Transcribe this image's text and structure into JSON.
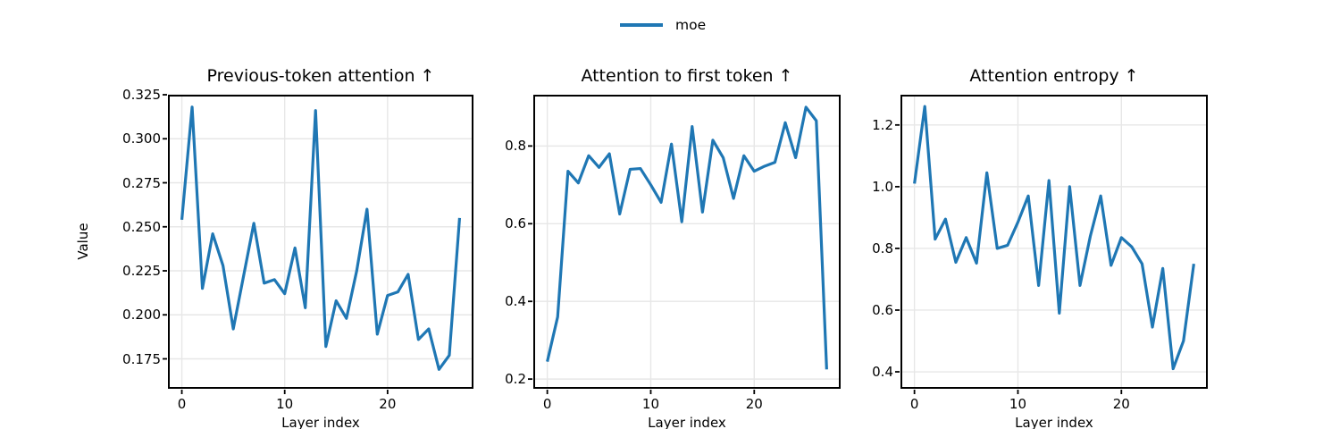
{
  "figure": {
    "background": "#ffffff"
  },
  "legend": {
    "label": "moe",
    "line_color": "#1f77b4"
  },
  "style": {
    "line_color": "#1f77b4",
    "grid_color": "#e7e7e7",
    "spine_color": "#000000",
    "text_color": "#000000"
  },
  "chart_data": [
    {
      "type": "line",
      "title": "Previous-token attention ↑",
      "xlabel": "Layer index",
      "ylabel": "Value",
      "grid": true,
      "legend_position": "upper center of figure, no frame",
      "x": [
        0,
        1,
        2,
        3,
        4,
        5,
        6,
        7,
        8,
        9,
        10,
        11,
        12,
        13,
        14,
        15,
        16,
        17,
        18,
        19,
        20,
        21,
        22,
        23,
        24,
        25,
        26,
        27
      ],
      "series": [
        {
          "name": "moe",
          "color": "#1f77b4",
          "values": [
            0.254,
            0.318,
            0.215,
            0.246,
            0.228,
            0.192,
            0.222,
            0.252,
            0.218,
            0.22,
            0.212,
            0.238,
            0.204,
            0.316,
            0.182,
            0.208,
            0.198,
            0.225,
            0.26,
            0.189,
            0.211,
            0.213,
            0.223,
            0.186,
            0.192,
            0.169,
            0.177,
            0.255
          ]
        }
      ],
      "xlim": [
        -1.35,
        28.35
      ],
      "ylim": [
        0.158,
        0.325
      ],
      "xticks": [
        0,
        10,
        20
      ],
      "xtick_labels": [
        "0",
        "10",
        "20"
      ],
      "yticks": [
        0.325,
        0.3,
        0.275,
        0.25,
        0.225,
        0.2,
        0.175
      ],
      "ytick_labels": [
        "0.325",
        "0.300",
        "0.275",
        "0.250",
        "0.225",
        "0.200",
        "0.175"
      ]
    },
    {
      "type": "line",
      "title": "Attention to first token ↑",
      "xlabel": "Layer index",
      "ylabel": "",
      "grid": true,
      "x": [
        0,
        1,
        2,
        3,
        4,
        5,
        6,
        7,
        8,
        9,
        10,
        11,
        12,
        13,
        14,
        15,
        16,
        17,
        18,
        19,
        20,
        21,
        22,
        23,
        24,
        25,
        26,
        27
      ],
      "series": [
        {
          "name": "moe",
          "color": "#1f77b4",
          "values": [
            0.245,
            0.36,
            0.735,
            0.705,
            0.775,
            0.745,
            0.78,
            0.625,
            0.74,
            0.742,
            0.7,
            0.655,
            0.805,
            0.605,
            0.85,
            0.63,
            0.815,
            0.77,
            0.665,
            0.775,
            0.735,
            0.748,
            0.758,
            0.86,
            0.77,
            0.9,
            0.865,
            0.225
          ]
        }
      ],
      "xlim": [
        -1.35,
        28.35
      ],
      "ylim": [
        0.175,
        0.932
      ],
      "xticks": [
        0,
        10,
        20
      ],
      "xtick_labels": [
        "0",
        "10",
        "20"
      ],
      "yticks": [
        0.8,
        0.6,
        0.4,
        0.2
      ],
      "ytick_labels": [
        "0.8",
        "0.6",
        "0.4",
        "0.2"
      ]
    },
    {
      "type": "line",
      "title": "Attention entropy ↑",
      "xlabel": "Layer index",
      "ylabel": "",
      "grid": true,
      "x": [
        0,
        1,
        2,
        3,
        4,
        5,
        6,
        7,
        8,
        9,
        10,
        11,
        12,
        13,
        14,
        15,
        16,
        17,
        18,
        19,
        20,
        21,
        22,
        23,
        24,
        25,
        26,
        27
      ],
      "series": [
        {
          "name": "moe",
          "color": "#1f77b4",
          "values": [
            1.01,
            1.26,
            0.83,
            0.895,
            0.755,
            0.835,
            0.752,
            1.045,
            0.8,
            0.81,
            0.885,
            0.97,
            0.68,
            1.02,
            0.59,
            1.0,
            0.68,
            0.84,
            0.97,
            0.745,
            0.835,
            0.805,
            0.75,
            0.545,
            0.735,
            0.41,
            0.5,
            0.75
          ]
        }
      ],
      "xlim": [
        -1.35,
        28.35
      ],
      "ylim": [
        0.345,
        1.298
      ],
      "xticks": [
        0,
        10,
        20
      ],
      "xtick_labels": [
        "0",
        "10",
        "20"
      ],
      "yticks": [
        1.2,
        1.0,
        0.8,
        0.6,
        0.4
      ],
      "ytick_labels": [
        "1.2",
        "1.0",
        "0.8",
        "0.6",
        "0.4"
      ]
    }
  ]
}
